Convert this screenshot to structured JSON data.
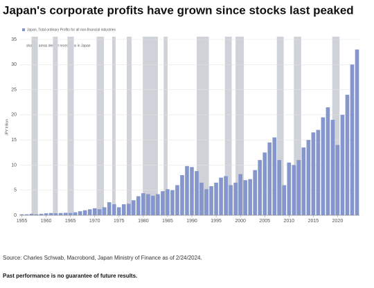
{
  "chart_data": {
    "type": "bar",
    "title": "Japan's corporate profits have grown since stocks last peaked",
    "annotation": "shaded areas denote recessions in Japan",
    "y_label": "JPY trillion",
    "source": "Source: Charles Schwab, Macrobond, Japan Ministry of Finance as of 2/24/2024.",
    "disclaimer": "Past performance is no guarantee of future results.",
    "x": [
      1955,
      1956,
      1957,
      1958,
      1959,
      1960,
      1961,
      1962,
      1963,
      1964,
      1965,
      1966,
      1967,
      1968,
      1969,
      1970,
      1971,
      1972,
      1973,
      1974,
      1975,
      1976,
      1977,
      1978,
      1979,
      1980,
      1981,
      1982,
      1983,
      1984,
      1985,
      1986,
      1987,
      1988,
      1989,
      1990,
      1991,
      1992,
      1993,
      1994,
      1995,
      1996,
      1997,
      1998,
      1999,
      2000,
      2001,
      2002,
      2003,
      2004,
      2005,
      2006,
      2007,
      2008,
      2009,
      2010,
      2011,
      2012,
      2013,
      2014,
      2015,
      2016,
      2017,
      2018,
      2019,
      2020,
      2021,
      2022,
      2023,
      2024
    ],
    "series": [
      {
        "name": "Japan, Total ordinary Profits for all non-financial industries",
        "color": "#8496cc",
        "values": [
          0.2,
          0.2,
          0.3,
          0.2,
          0.3,
          0.4,
          0.45,
          0.4,
          0.45,
          0.5,
          0.45,
          0.6,
          0.8,
          1.0,
          1.2,
          1.4,
          1.2,
          1.6,
          2.6,
          2.2,
          1.6,
          2.2,
          2.3,
          3.0,
          3.8,
          4.4,
          4.2,
          3.9,
          4.2,
          4.8,
          5.2,
          5.0,
          6.0,
          8.0,
          9.8,
          9.6,
          8.8,
          6.5,
          5.2,
          5.8,
          6.5,
          7.5,
          7.8,
          6.0,
          6.5,
          8.2,
          7.0,
          7.2,
          9.0,
          11.0,
          12.5,
          14.5,
          15.5,
          11.0,
          6.0,
          10.5,
          10.0,
          11.0,
          13.5,
          15.0,
          16.5,
          17.0,
          19.5,
          21.5,
          19.0,
          14.0,
          20.0,
          24.0,
          30.0,
          33.0
        ]
      }
    ],
    "recessions": [
      [
        1957.0,
        1958.3
      ],
      [
        1961.4,
        1962.4
      ],
      [
        1964.4,
        1965.7
      ],
      [
        1970.4,
        1971.9
      ],
      [
        1973.6,
        1974.3
      ],
      [
        1976.6,
        1977.6
      ],
      [
        1979.9,
        1983.0
      ],
      [
        1984.2,
        1985.0
      ],
      [
        1991.0,
        1993.5
      ],
      [
        1996.8,
        1998.2
      ],
      [
        1999.0,
        2000.7
      ],
      [
        2007.5,
        2008.9
      ],
      [
        2011.0,
        2012.5
      ],
      [
        2018.9,
        2020.4
      ]
    ],
    "recession_color": "#cfd2d8",
    "xlim": [
      1954.5,
      2024.5
    ],
    "ylim": [
      0,
      35
    ],
    "xticks": [
      1955,
      1960,
      1965,
      1970,
      1975,
      1980,
      1985,
      1990,
      1995,
      2000,
      2005,
      2010,
      2015,
      2020
    ],
    "yticks": [
      0,
      5,
      10,
      15,
      20,
      25,
      30,
      35
    ],
    "grid": true
  }
}
